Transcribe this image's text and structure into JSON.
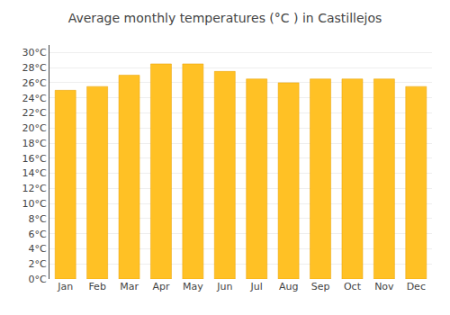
{
  "chart_data": {
    "type": "bar",
    "title": "Average monthly temperatures (°C ) in Castillejos",
    "categories": [
      "Jan",
      "Feb",
      "Mar",
      "Apr",
      "May",
      "Jun",
      "Jul",
      "Aug",
      "Sep",
      "Oct",
      "Nov",
      "Dec"
    ],
    "values": [
      25.0,
      25.5,
      27.0,
      28.5,
      28.5,
      27.5,
      26.5,
      26.0,
      26.5,
      26.5,
      26.5,
      25.5
    ],
    "color": "#FFC125",
    "ylim": [
      0,
      31
    ],
    "yticks": [
      {
        "value": 0,
        "label": "0°C"
      },
      {
        "value": 2,
        "label": "2°C"
      },
      {
        "value": 4,
        "label": "4°C"
      },
      {
        "value": 6,
        "label": "6°C"
      },
      {
        "value": 8,
        "label": "8°C"
      },
      {
        "value": 10,
        "label": "10°C"
      },
      {
        "value": 12,
        "label": "12°C"
      },
      {
        "value": 14,
        "label": "14°C"
      },
      {
        "value": 16,
        "label": "16°C"
      },
      {
        "value": 18,
        "label": "18°C"
      },
      {
        "value": 20,
        "label": "20°C"
      },
      {
        "value": 22,
        "label": "22°C"
      },
      {
        "value": 24,
        "label": "24°C"
      },
      {
        "value": 26,
        "label": "26°C"
      },
      {
        "value": 28,
        "label": "28°C"
      },
      {
        "value": 30,
        "label": "30°C"
      }
    ],
    "grid": true
  }
}
